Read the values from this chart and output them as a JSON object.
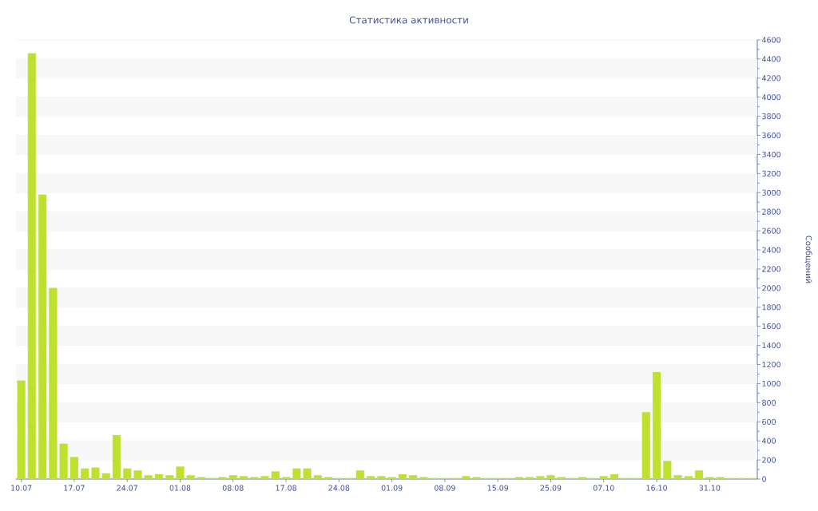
{
  "chart_data": {
    "type": "bar",
    "title": "Статистика активности",
    "ylabel": "Сообщений",
    "categories": [
      "10.07",
      null,
      null,
      null,
      null,
      "17.07",
      null,
      null,
      null,
      null,
      "24.07",
      null,
      null,
      null,
      null,
      "01.08",
      null,
      null,
      null,
      null,
      "08.08",
      null,
      null,
      null,
      null,
      "17.08",
      null,
      null,
      null,
      null,
      "24.08",
      null,
      null,
      null,
      null,
      "01.09",
      null,
      null,
      null,
      null,
      "08.09",
      null,
      null,
      null,
      null,
      "15.09",
      null,
      null,
      null,
      null,
      "25.09",
      null,
      null,
      null,
      null,
      "07.10",
      null,
      null,
      null,
      null,
      "16.10",
      null,
      null,
      null,
      null,
      "31.10",
      null,
      null,
      null,
      null
    ],
    "values": [
      1030,
      4460,
      2980,
      2000,
      370,
      230,
      110,
      120,
      60,
      460,
      110,
      90,
      40,
      50,
      40,
      130,
      40,
      20,
      10,
      20,
      40,
      30,
      20,
      30,
      80,
      20,
      110,
      110,
      40,
      20,
      10,
      10,
      90,
      30,
      30,
      20,
      50,
      40,
      20,
      10,
      10,
      10,
      30,
      20,
      10,
      10,
      10,
      20,
      20,
      30,
      40,
      20,
      10,
      20,
      10,
      30,
      50,
      10,
      10,
      700,
      1120,
      190,
      40,
      30,
      90,
      20,
      20,
      10,
      10,
      10
    ],
    "color": "#bde12e",
    "ylim": [
      0,
      4600
    ],
    "yticks": [
      0,
      200,
      400,
      600,
      800,
      1000,
      1200,
      1400,
      1600,
      1800,
      2000,
      2200,
      2400,
      2600,
      2800,
      3000,
      3200,
      3400,
      3600,
      3800,
      4000,
      4200,
      4400,
      4600
    ],
    "grid": "y"
  }
}
